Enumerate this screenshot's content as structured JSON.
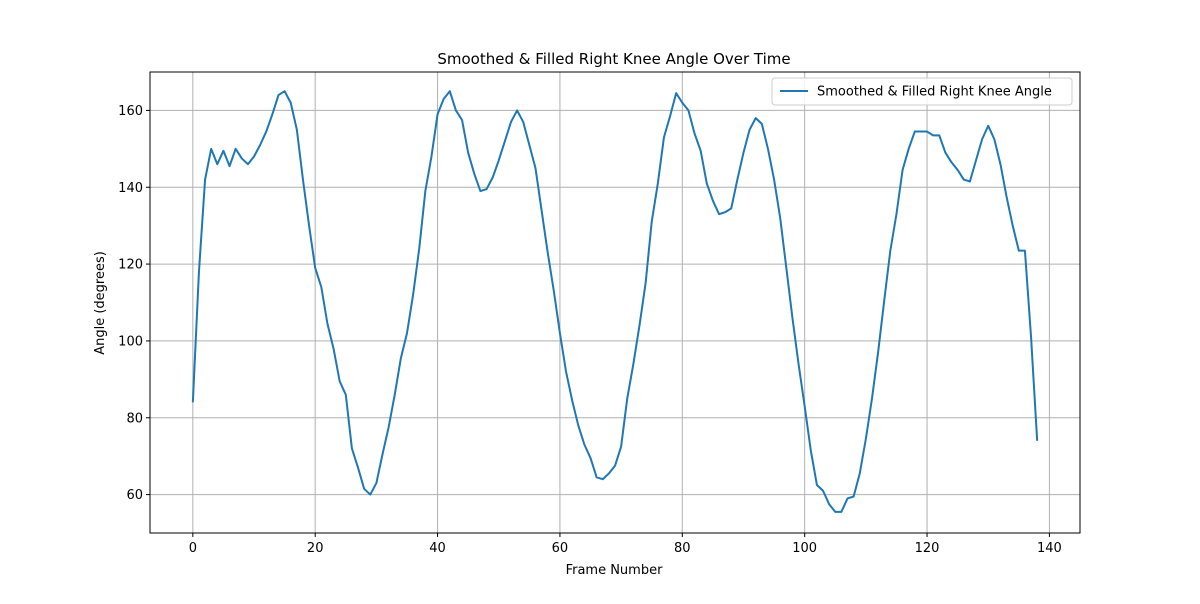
{
  "chart_data": {
    "type": "line",
    "title": "Smoothed & Filled Right Knee Angle Over Time",
    "xlabel": "Frame Number",
    "ylabel": "Angle (degrees)",
    "xlim": [
      -7,
      145
    ],
    "ylim": [
      50,
      170
    ],
    "xticks": [
      0,
      20,
      40,
      60,
      80,
      100,
      120,
      140
    ],
    "yticks": [
      60,
      80,
      100,
      120,
      140,
      160
    ],
    "grid": true,
    "legend_position": "top-right",
    "series_color": "#1f77b4",
    "series": [
      {
        "name": "Smoothed & Filled Right Knee Angle",
        "x": [
          0,
          1,
          2,
          3,
          4,
          5,
          6,
          7,
          8,
          9,
          10,
          11,
          12,
          13,
          14,
          15,
          16,
          17,
          18,
          19,
          20,
          21,
          22,
          23,
          24,
          25,
          26,
          27,
          28,
          29,
          30,
          31,
          32,
          33,
          34,
          35,
          36,
          37,
          38,
          39,
          40,
          41,
          42,
          43,
          44,
          45,
          46,
          47,
          48,
          49,
          50,
          51,
          52,
          53,
          54,
          55,
          56,
          57,
          58,
          59,
          60,
          61,
          62,
          63,
          64,
          65,
          66,
          67,
          68,
          69,
          70,
          71,
          72,
          73,
          74,
          75,
          76,
          77,
          78,
          79,
          80,
          81,
          82,
          83,
          84,
          85,
          86,
          87,
          88,
          89,
          90,
          91,
          92,
          93,
          94,
          95,
          96,
          97,
          98,
          99,
          100,
          101,
          102,
          103,
          104,
          105,
          106,
          107,
          108,
          109,
          110,
          111,
          112,
          113,
          114,
          115,
          116,
          117,
          118,
          119,
          120,
          121,
          122,
          123,
          124,
          125,
          126,
          127,
          128,
          129,
          130,
          131,
          132,
          133,
          134,
          135,
          136,
          137,
          138
        ],
        "values": [
          84,
          118,
          142,
          150,
          146,
          149.5,
          145.5,
          150,
          147.5,
          146,
          148,
          151,
          154.5,
          159,
          164,
          165,
          162,
          155,
          142,
          130,
          119,
          114,
          104.5,
          98,
          89.5,
          86,
          72,
          67,
          61.5,
          60,
          63,
          70.5,
          77.5,
          86,
          95.5,
          102,
          112,
          124,
          139,
          148,
          159,
          163,
          165,
          160,
          157.5,
          149,
          143.5,
          139,
          139.5,
          142.5,
          147,
          152,
          157,
          160,
          157,
          151,
          145,
          134,
          123,
          113,
          102,
          92,
          84.5,
          78,
          73,
          69.5,
          64.5,
          64,
          65.5,
          67.5,
          72.5,
          85,
          94,
          104,
          115,
          131,
          141,
          153,
          158.5,
          164.5,
          162,
          160,
          154,
          149.5,
          141,
          136.5,
          133,
          133.5,
          134.5,
          142,
          149,
          155,
          158,
          156.5,
          150,
          142,
          132,
          119,
          106,
          94,
          83,
          71.5,
          62.5,
          61,
          57.5,
          55.5,
          55.5,
          59,
          59.5,
          65.5,
          74.5,
          85,
          97,
          110.5,
          123.5,
          133,
          144.5,
          150,
          154.5,
          154.5,
          154.5,
          153.5,
          153.5,
          149,
          146.5,
          144.5,
          142,
          141.5,
          147,
          152.5,
          156,
          152.5,
          146,
          137.5,
          130,
          123.5,
          123.5,
          101,
          74
        ]
      }
    ]
  }
}
